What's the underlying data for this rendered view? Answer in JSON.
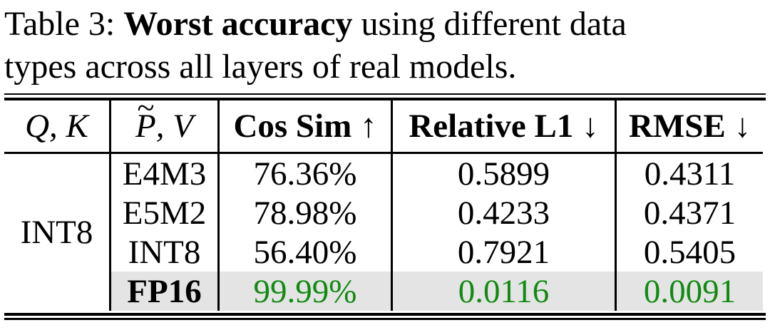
{
  "caption": {
    "line1_prefix": "Table 3: ",
    "line1_bold": "Worst accuracy",
    "line1_rest": " using different data",
    "line2": "types across all layers of real models."
  },
  "table": {
    "header": {
      "qk": "Q, K",
      "pv_tilde": "~",
      "pv_p": "P",
      "pv_rest": ", V",
      "cos_sim": "Cos Sim ↑",
      "rel_l1": "Relative L1 ↓",
      "rmse": "RMSE ↓"
    },
    "row_group_label": "INT8",
    "rows": [
      {
        "dtype": "E4M3",
        "cos_sim": "76.36%",
        "rel_l1": "0.5899",
        "rmse": "0.4311"
      },
      {
        "dtype": "E5M2",
        "cos_sim": "78.98%",
        "rel_l1": "0.4233",
        "rmse": "0.4371"
      },
      {
        "dtype": "INT8",
        "cos_sim": "56.40%",
        "rel_l1": "0.7921",
        "rmse": "0.5405"
      },
      {
        "dtype": "FP16",
        "cos_sim": "99.99%",
        "rel_l1": "0.0116",
        "rmse": "0.0091"
      }
    ],
    "colors": {
      "highlight_row_bg": "#e4e4e4",
      "good_value_text": "#118a11",
      "rule_color": "#000000"
    }
  }
}
